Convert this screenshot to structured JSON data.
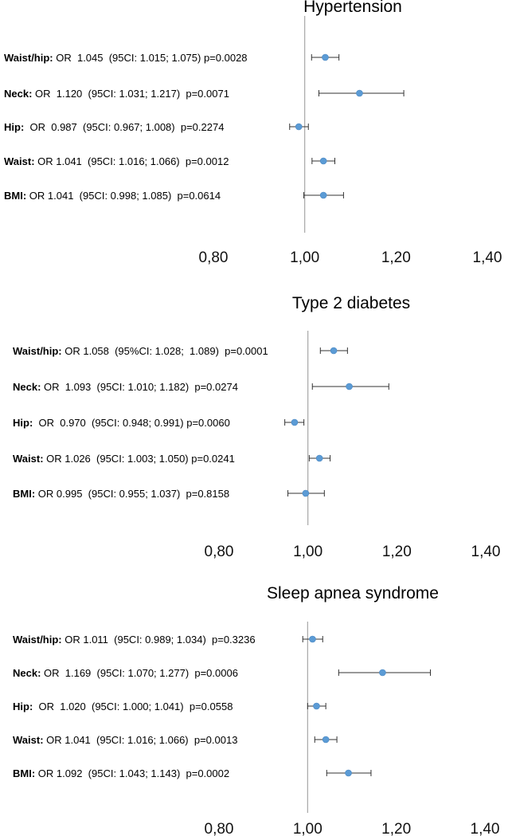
{
  "chart_data": [
    {
      "type": "forest",
      "title": "Hypertension",
      "reference_line": 1.0,
      "xlim": [
        0.8,
        1.4
      ],
      "xticks": [
        "0,80",
        "1,00",
        "1,20",
        "1,40"
      ],
      "xtick_values": [
        0.8,
        1.0,
        1.2,
        1.4
      ],
      "rows": [
        {
          "name": "Waist/hip:",
          "text": " OR  1.045  (95CI: 1.015; 1.075) p=0.0028",
          "or": 1.045,
          "low": 1.015,
          "high": 1.075
        },
        {
          "name": "Neck:",
          "text": " OR  1.120  (95CI: 1.031; 1.217)  p=0.0071",
          "or": 1.12,
          "low": 1.031,
          "high": 1.217
        },
        {
          "name": "Hip:",
          "text": "  OR  0.987  (95CI: 0.967; 1.008)  p=0.2274",
          "or": 0.987,
          "low": 0.967,
          "high": 1.008
        },
        {
          "name": "Waist:",
          "text": " OR 1.041  (95CI: 1.016; 1.066)  p=0.0012",
          "or": 1.041,
          "low": 1.016,
          "high": 1.066
        },
        {
          "name": "BMI:",
          "text": " OR 1.041  (95CI: 0.998; 1.085)  p=0.0614",
          "or": 1.041,
          "low": 0.998,
          "high": 1.085
        }
      ]
    },
    {
      "type": "forest",
      "title": "Type 2 diabetes",
      "reference_line": 1.0,
      "xlim": [
        0.8,
        1.4
      ],
      "xticks": [
        "0,80",
        "1,00",
        "1,20",
        "1,40"
      ],
      "xtick_values": [
        0.8,
        1.0,
        1.2,
        1.4
      ],
      "rows": [
        {
          "name": "Waist/hip:",
          "text": " OR 1.058  (95%CI: 1.028;  1.089)  p=0.0001",
          "or": 1.058,
          "low": 1.028,
          "high": 1.089
        },
        {
          "name": "Neck:",
          "text": " OR  1.093  (95CI: 1.010; 1.182)  p=0.0274",
          "or": 1.093,
          "low": 1.01,
          "high": 1.182
        },
        {
          "name": "Hip:",
          "text": "  OR  0.970  (95CI: 0.948; 0.991) p=0.0060",
          "or": 0.97,
          "low": 0.948,
          "high": 0.991
        },
        {
          "name": "Waist:",
          "text": " OR 1.026  (95CI: 1.003; 1.050) p=0.0241",
          "or": 1.026,
          "low": 1.003,
          "high": 1.05
        },
        {
          "name": "BMI:",
          "text": " OR 0.995  (95CI: 0.955; 1.037)  p=0.8158",
          "or": 0.995,
          "low": 0.955,
          "high": 1.037
        }
      ]
    },
    {
      "type": "forest",
      "title": "Sleep apnea syndrome",
      "reference_line": 1.0,
      "xlim": [
        0.8,
        1.4
      ],
      "xticks": [
        "0,80",
        "1,00",
        "1,20",
        "1,40"
      ],
      "xtick_values": [
        0.8,
        1.0,
        1.2,
        1.4
      ],
      "rows": [
        {
          "name": "Waist/hip:",
          "text": " OR 1.011  (95CI: 0.989; 1.034)  p=0.3236",
          "or": 1.011,
          "low": 0.989,
          "high": 1.034
        },
        {
          "name": "Neck:",
          "text": " OR  1.169  (95CI: 1.070; 1.277)  p=0.0006",
          "or": 1.169,
          "low": 1.07,
          "high": 1.277
        },
        {
          "name": "Hip:",
          "text": "  OR  1.020  (95CI: 1.000; 1.041)  p=0.0558",
          "or": 1.02,
          "low": 1.0,
          "high": 1.041
        },
        {
          "name": "Waist:",
          "text": " OR 1.041  (95CI: 1.016; 1.066)  p=0.0013",
          "or": 1.041,
          "low": 1.016,
          "high": 1.066
        },
        {
          "name": "BMI:",
          "text": " OR 1.092  (95CI: 1.043; 1.143)  p=0.0002",
          "or": 1.092,
          "low": 1.043,
          "high": 1.143
        }
      ]
    }
  ]
}
